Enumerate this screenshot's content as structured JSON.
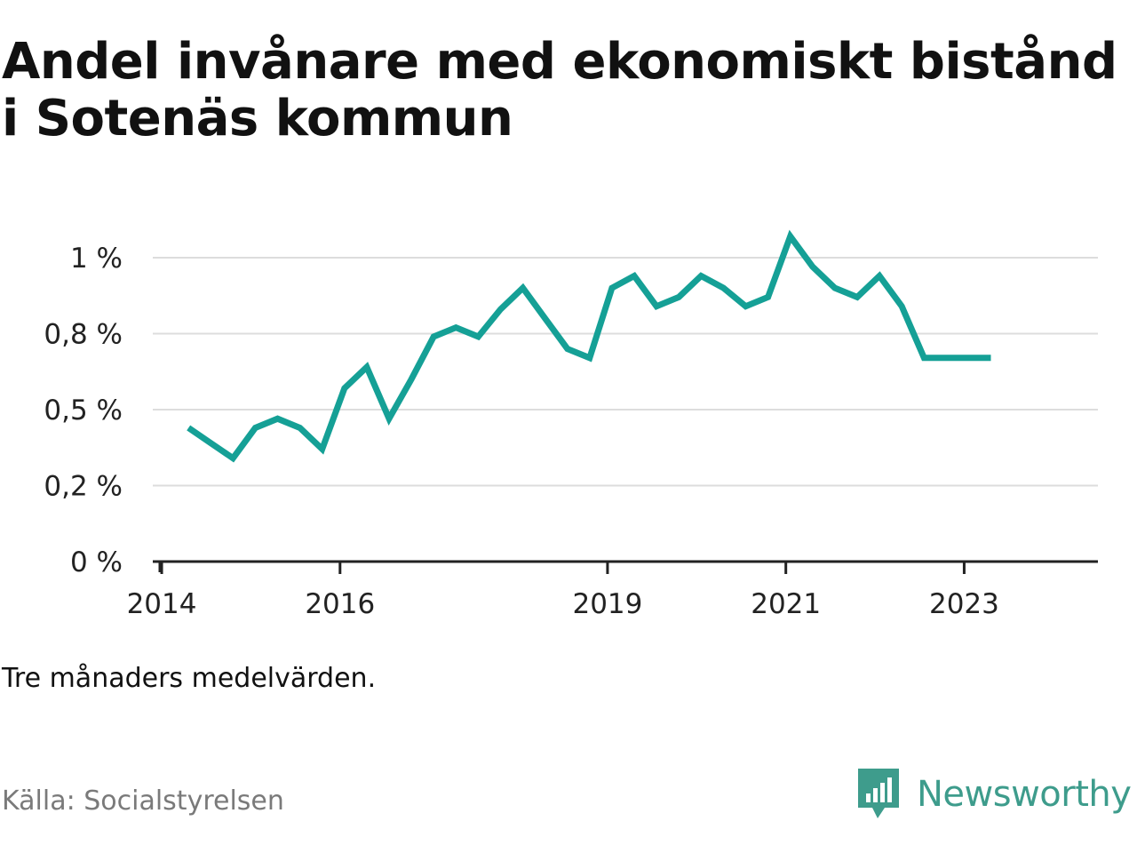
{
  "title": "Andel invånare med ekonomiskt bistånd i Sotenäs kommun",
  "note": "Tre månaders medelvärden.",
  "source": "Källa: Socialstyrelsen",
  "brand": {
    "name": "Newsworthy",
    "icon": "newsworthy-logo-icon",
    "color": "#3e9c8c"
  },
  "colors": {
    "line": "#15a096",
    "grid": "#dddddd",
    "axis": "#222222"
  },
  "chart_data": {
    "type": "line",
    "title": "Andel invånare med ekonomiskt bistånd i Sotenäs kommun",
    "xlabel": "",
    "ylabel": "",
    "grid": true,
    "legend": "none",
    "y_ticks": [
      {
        "value": 0,
        "label": "0 %"
      },
      {
        "value": 0.25,
        "label": "0,2 %"
      },
      {
        "value": 0.5,
        "label": "0,5 %"
      },
      {
        "value": 0.75,
        "label": "0,8 %"
      },
      {
        "value": 1.0,
        "label": "1 %"
      }
    ],
    "x_ticks": [
      {
        "value": 2014,
        "label": "2014"
      },
      {
        "value": 2016,
        "label": "2016"
      },
      {
        "value": 2019,
        "label": "2019"
      },
      {
        "value": 2021,
        "label": "2021"
      },
      {
        "value": 2023,
        "label": "2023"
      }
    ],
    "xlim": [
      2013.9,
      2024.5
    ],
    "ylim": [
      0,
      1.07
    ],
    "series": [
      {
        "x": [
          2014.3,
          2014.55,
          2014.8,
          2015.05,
          2015.3,
          2015.55,
          2015.8,
          2016.05,
          2016.3,
          2016.55,
          2016.8,
          2017.05,
          2017.3,
          2017.55,
          2017.8,
          2018.05,
          2018.3,
          2018.55,
          2018.8,
          2019.05,
          2019.3,
          2019.55,
          2019.8,
          2020.05,
          2020.3,
          2020.55,
          2020.8,
          2021.05,
          2021.3,
          2021.55,
          2021.8,
          2022.05,
          2022.3,
          2022.55,
          2022.8,
          2023.05,
          2023.3
        ],
        "values": [
          0.44,
          0.39,
          0.34,
          0.44,
          0.47,
          0.44,
          0.37,
          0.57,
          0.64,
          0.47,
          0.6,
          0.74,
          0.77,
          0.74,
          0.83,
          0.9,
          0.8,
          0.7,
          0.67,
          0.9,
          0.94,
          0.84,
          0.87,
          0.94,
          0.9,
          0.84,
          0.87,
          1.07,
          0.97,
          0.9,
          0.87,
          0.94,
          0.84,
          0.67,
          0.67,
          0.67,
          0.67
        ]
      }
    ]
  }
}
